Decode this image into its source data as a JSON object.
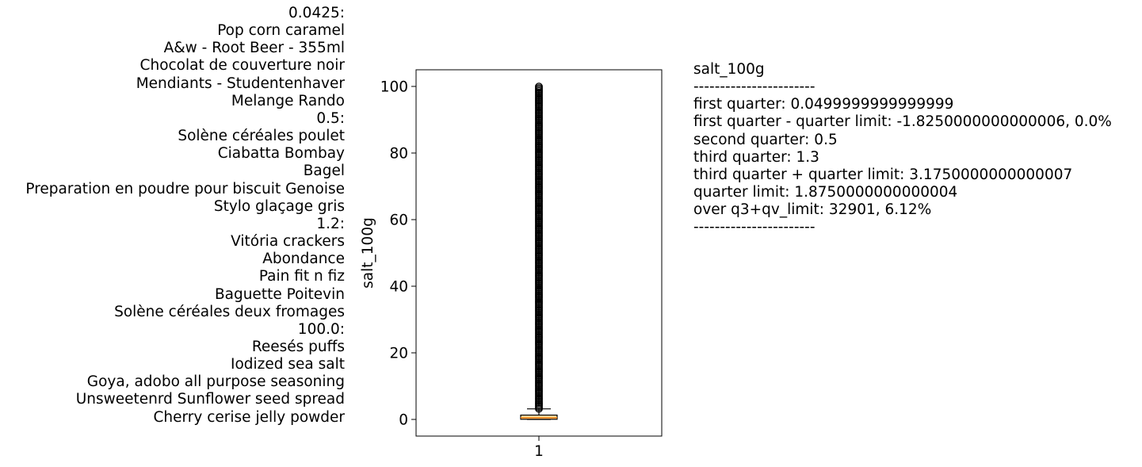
{
  "annotations": {
    "lines": [
      "0.0425:",
      "Pop corn caramel",
      "A&w - Root Beer - 355ml",
      "Chocolat de couverture noir",
      "Mendiants - Studentenhaver",
      "Melange Rando",
      "0.5:",
      "Solène céréales poulet",
      "Ciabatta Bombay",
      "Bagel",
      "Preparation en poudre pour biscuit Genoise",
      "Stylo glaçage gris",
      "1.2:",
      "Vitória crackers",
      "Abondance",
      "Pain fit n fiz",
      "Baguette Poitevin",
      "Solène céréales deux fromages",
      "100.0:",
      "Reesés puffs",
      "Iodized sea salt",
      "Goya, adobo all purpose seasoning",
      "Unsweetenrd Sunflower seed spread",
      "Cherry cerise jelly powder"
    ]
  },
  "stats": {
    "lines": [
      "salt_100g",
      "-----------------------",
      "first quarter: 0.0499999999999999",
      "first quarter - quarter limit: -1.8250000000000006, 0.0%",
      "second quarter: 0.5",
      "third quarter: 1.3",
      "third quarter + quarter limit: 3.1750000000000007",
      "quarter limit: 1.8750000000000004",
      "over q3+qv_limit: 32901, 6.12%",
      "-----------------------"
    ]
  },
  "chart_data": {
    "type": "box",
    "categories": [
      "1"
    ],
    "ylabel": "salt_100g",
    "xlabel": "",
    "ylim": [
      -5,
      105
    ],
    "yticks": [
      0,
      20,
      40,
      60,
      80,
      100
    ],
    "box": {
      "q1": 0.05,
      "median": 0.5,
      "q3": 1.3,
      "whisker_low": 0,
      "whisker_high": 3.175,
      "outliers_from": 3.2,
      "outliers_to": 100
    },
    "colors": {
      "box_fill": "#ffe0a3",
      "median_line": "#ff7f0e",
      "line": "#000000"
    }
  }
}
